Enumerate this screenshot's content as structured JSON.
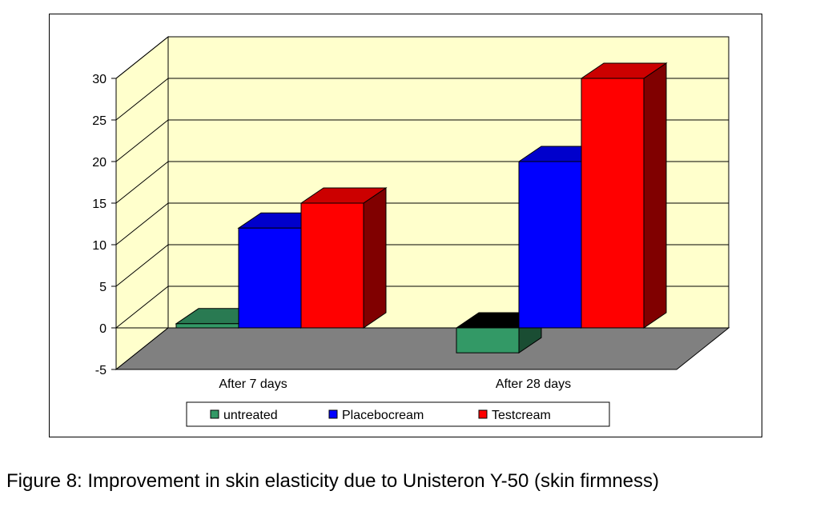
{
  "caption": "Figure 8: Improvement in skin elasticity due to Unisteron Y-50 (skin firmness)",
  "chart_data": {
    "type": "bar",
    "categories": [
      "After 7 days",
      "After 28 days"
    ],
    "series": [
      {
        "name": "untreated",
        "values": [
          0.5,
          -3
        ],
        "color": "#339966"
      },
      {
        "name": "Placebocream",
        "values": [
          12,
          20
        ],
        "color": "#0000ff"
      },
      {
        "name": "Testcream",
        "values": [
          15,
          30
        ],
        "color": "#ff0000"
      }
    ],
    "ylim": [
      -5,
      30
    ],
    "yticks": [
      "-5",
      "0",
      "5",
      "10",
      "15",
      "20",
      "25",
      "30"
    ],
    "grid": true,
    "legend_position": "bottom",
    "wall_color": "#ffffcc",
    "floor_color": "#808080",
    "three_d": true
  }
}
